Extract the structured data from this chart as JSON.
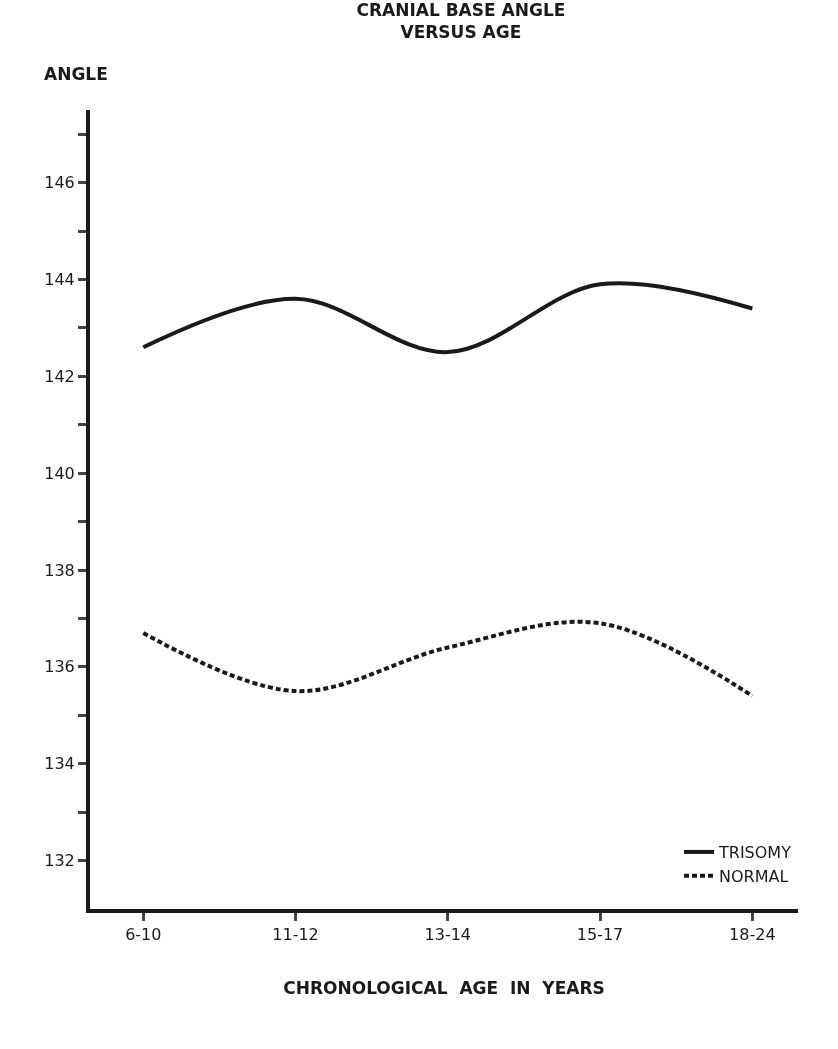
{
  "chart_data": {
    "type": "line",
    "title": "CRANIAL BASE ANGLE\nVERSUS AGE",
    "ylabel": "ANGLE",
    "xlabel": "CHRONOLOGICAL  AGE  IN  YEARS",
    "categories": [
      "6-10",
      "11-12",
      "13-14",
      "15-17",
      "18-24"
    ],
    "series": [
      {
        "name": "TRISOMY",
        "color": "#1a1a1a",
        "values": [
          142.6,
          143.6,
          142.5,
          143.9,
          143.4
        ],
        "line_style": "solid"
      },
      {
        "name": "NORMAL",
        "color": "#1a1a1a",
        "values": [
          136.7,
          135.5,
          136.4,
          136.9,
          135.4
        ],
        "line_style": "dashed"
      }
    ],
    "ylim": [
      131,
      147.5
    ],
    "yticks": [
      {
        "value": 132,
        "label": "132"
      },
      {
        "value": 133,
        "label": null
      },
      {
        "value": 134,
        "label": "134"
      },
      {
        "value": 135,
        "label": null
      },
      {
        "value": 136,
        "label": "136"
      },
      {
        "value": 137,
        "label": null
      },
      {
        "value": 138,
        "label": "138"
      },
      {
        "value": 139,
        "label": null
      },
      {
        "value": 140,
        "label": "140"
      },
      {
        "value": 141,
        "label": null
      },
      {
        "value": 142,
        "label": "142"
      },
      {
        "value": 143,
        "label": null
      },
      {
        "value": 144,
        "label": "144"
      },
      {
        "value": 145,
        "label": null
      },
      {
        "value": 146,
        "label": "146"
      },
      {
        "value": 147,
        "label": null
      }
    ],
    "legend": "bottom right",
    "marker": "none"
  }
}
